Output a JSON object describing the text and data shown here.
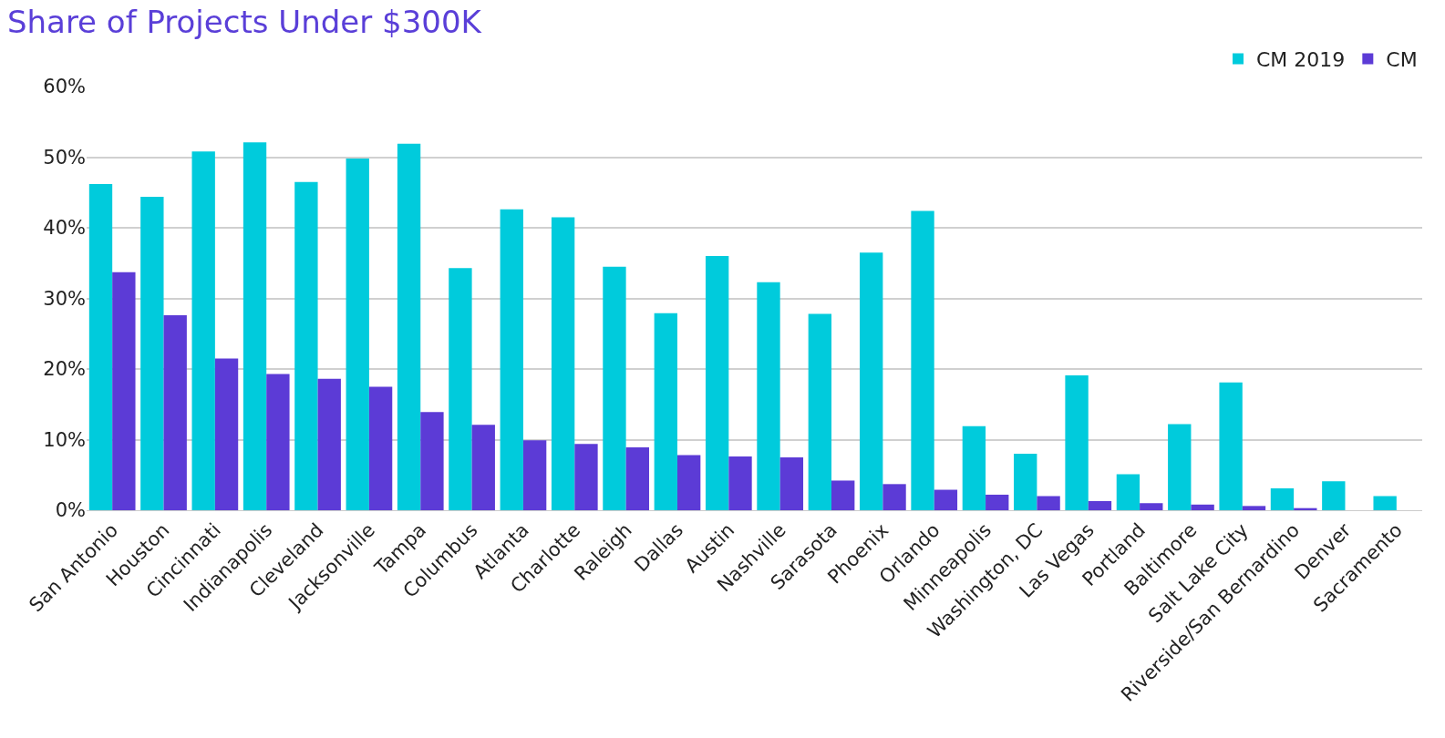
{
  "chart_data": {
    "type": "bar",
    "title": "Share of Projects Under $300K",
    "categories": [
      "San Antonio",
      "Houston",
      "Cincinnati",
      "Indianapolis",
      "Cleveland",
      "Jacksonville",
      "Tampa",
      "Columbus",
      "Atlanta",
      "Charlotte",
      "Raleigh",
      "Dallas",
      "Austin",
      "Nashville",
      "Sarasota",
      "Phoenix",
      "Orlando",
      "Minneapolis",
      "Washington, DC",
      "Las Vegas",
      "Portland",
      "Baltimore",
      "Salt Lake City",
      "Riverside/San Bernardino",
      "Denver",
      "Sacramento"
    ],
    "series": [
      {
        "name": "CM 2019",
        "color": "#00cbdc",
        "values": [
          46.2,
          44.4,
          50.8,
          52.1,
          46.5,
          49.8,
          51.9,
          34.3,
          42.6,
          41.5,
          34.5,
          27.9,
          36.0,
          32.3,
          27.8,
          36.5,
          42.4,
          11.9,
          8.0,
          19.1,
          5.1,
          12.2,
          18.1,
          3.1,
          4.1,
          2.0
        ]
      },
      {
        "name": "CM",
        "color": "#5c3bd6",
        "values": [
          33.7,
          27.6,
          21.5,
          19.3,
          18.6,
          17.5,
          13.9,
          12.1,
          9.9,
          9.4,
          8.9,
          7.8,
          7.6,
          7.5,
          4.2,
          3.7,
          2.9,
          2.2,
          2.0,
          1.3,
          1.0,
          0.8,
          0.6,
          0.3,
          null,
          null
        ]
      }
    ],
    "ylim": [
      0,
      60
    ],
    "yticks": [
      {
        "value": 0,
        "label": "0%"
      },
      {
        "value": 10,
        "label": "10%"
      },
      {
        "value": 20,
        "label": "20%"
      },
      {
        "value": 30,
        "label": "30%"
      },
      {
        "value": 40,
        "label": "40%"
      },
      {
        "value": 50,
        "label": "50%"
      },
      {
        "value": 60,
        "label": "60%"
      }
    ],
    "grid": "y",
    "legend": "top right"
  }
}
